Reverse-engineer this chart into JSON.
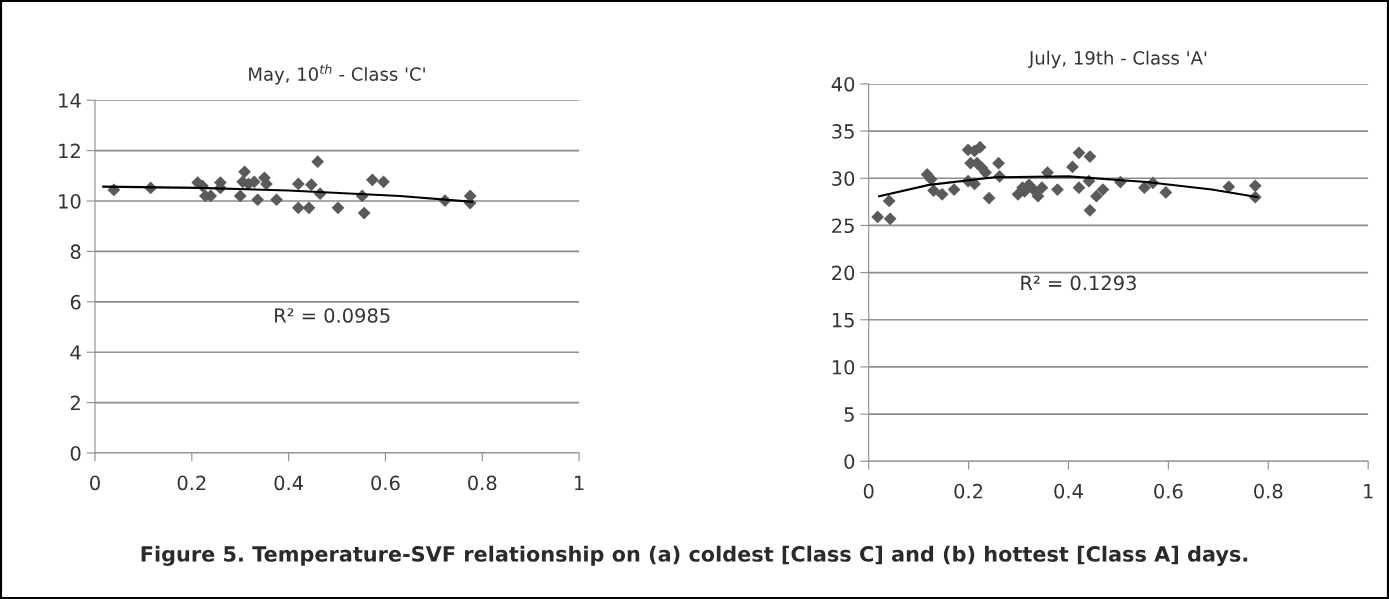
{
  "chart_data": [
    {
      "type": "scatter",
      "title": "May, 10$^{th}$ - Class 'C'",
      "xlim": [
        0,
        1
      ],
      "xticks": [
        0,
        0.2,
        0.4,
        0.6,
        0.8,
        1
      ],
      "ylim": [
        0,
        14
      ],
      "yticks": [
        0,
        2,
        4,
        6,
        8,
        10,
        12,
        14
      ],
      "grid": "y",
      "series": [
        {
          "color": "#5a5a5a",
          "marker": "diamond",
          "x": [
            0.039,
            0.115,
            0.212,
            0.222,
            0.228,
            0.239,
            0.259,
            0.259,
            0.3,
            0.309,
            0.305,
            0.317,
            0.329,
            0.336,
            0.35,
            0.354,
            0.375,
            0.42,
            0.42,
            0.442,
            0.447,
            0.46,
            0.465,
            0.502,
            0.552,
            0.556,
            0.573,
            0.596,
            0.723,
            0.775,
            0.775
          ],
          "values": [
            10.44,
            10.52,
            10.73,
            10.6,
            10.2,
            10.2,
            10.73,
            10.52,
            10.2,
            11.16,
            10.76,
            10.68,
            10.76,
            10.05,
            10.92,
            10.68,
            10.05,
            10.68,
            9.73,
            9.73,
            10.65,
            11.56,
            10.29,
            9.73,
            10.2,
            9.52,
            10.84,
            10.76,
            10.02,
            10.2,
            9.92
          ]
        },
        {
          "type": "line",
          "color": "#000000",
          "marker": "none",
          "x": [
            0.017,
            0.212,
            0.399,
            0.63,
            0.779
          ],
          "values": [
            10.57,
            10.52,
            10.42,
            10.2,
            9.97
          ]
        }
      ],
      "annotations": [
        "R² = 0.0985"
      ]
    },
    {
      "type": "scatter",
      "title": "July, 19th - Class 'A'",
      "xlim": [
        0,
        1
      ],
      "xticks": [
        0,
        0.2,
        0.4,
        0.6,
        0.8,
        1
      ],
      "ylim": [
        0,
        40
      ],
      "yticks": [
        0,
        5,
        10,
        15,
        20,
        25,
        30,
        35,
        40
      ],
      "grid": "y",
      "series": [
        {
          "color": "#5a5a5a",
          "marker": "diamond",
          "x": [
            0.018,
            0.041,
            0.043,
            0.117,
            0.125,
            0.13,
            0.147,
            0.171,
            0.199,
            0.204,
            0.199,
            0.212,
            0.217,
            0.212,
            0.223,
            0.227,
            0.234,
            0.241,
            0.26,
            0.262,
            0.299,
            0.308,
            0.312,
            0.321,
            0.33,
            0.339,
            0.347,
            0.358,
            0.378,
            0.408,
            0.421,
            0.421,
            0.443,
            0.441,
            0.443,
            0.456,
            0.469,
            0.504,
            0.552,
            0.569,
            0.595,
            0.721,
            0.774,
            0.774
          ],
          "values": [
            25.9,
            27.6,
            25.7,
            30.4,
            29.9,
            28.7,
            28.3,
            28.8,
            33.0,
            31.6,
            29.7,
            32.9,
            31.6,
            29.4,
            33.3,
            31.1,
            30.6,
            27.9,
            31.6,
            30.2,
            28.3,
            29.0,
            28.6,
            29.3,
            28.8,
            28.1,
            29.0,
            30.6,
            28.8,
            31.2,
            32.7,
            29.0,
            32.3,
            29.7,
            26.6,
            28.1,
            28.8,
            29.6,
            29.0,
            29.5,
            28.5,
            29.1,
            29.2,
            28.0
          ]
        },
        {
          "type": "line",
          "color": "#000000",
          "marker": "none",
          "x": [
            0.021,
            0.121,
            0.252,
            0.4,
            0.556,
            0.687,
            0.778
          ],
          "values": [
            28.1,
            29.3,
            30.1,
            30.2,
            29.6,
            28.8,
            28.0
          ]
        }
      ],
      "annotations": [
        "R² = 0.1293",
        "Figure 5. Temperature-SVF relationship on (a) coldest [Class C] and (b) hottest [Class A] days."
      ]
    }
  ]
}
